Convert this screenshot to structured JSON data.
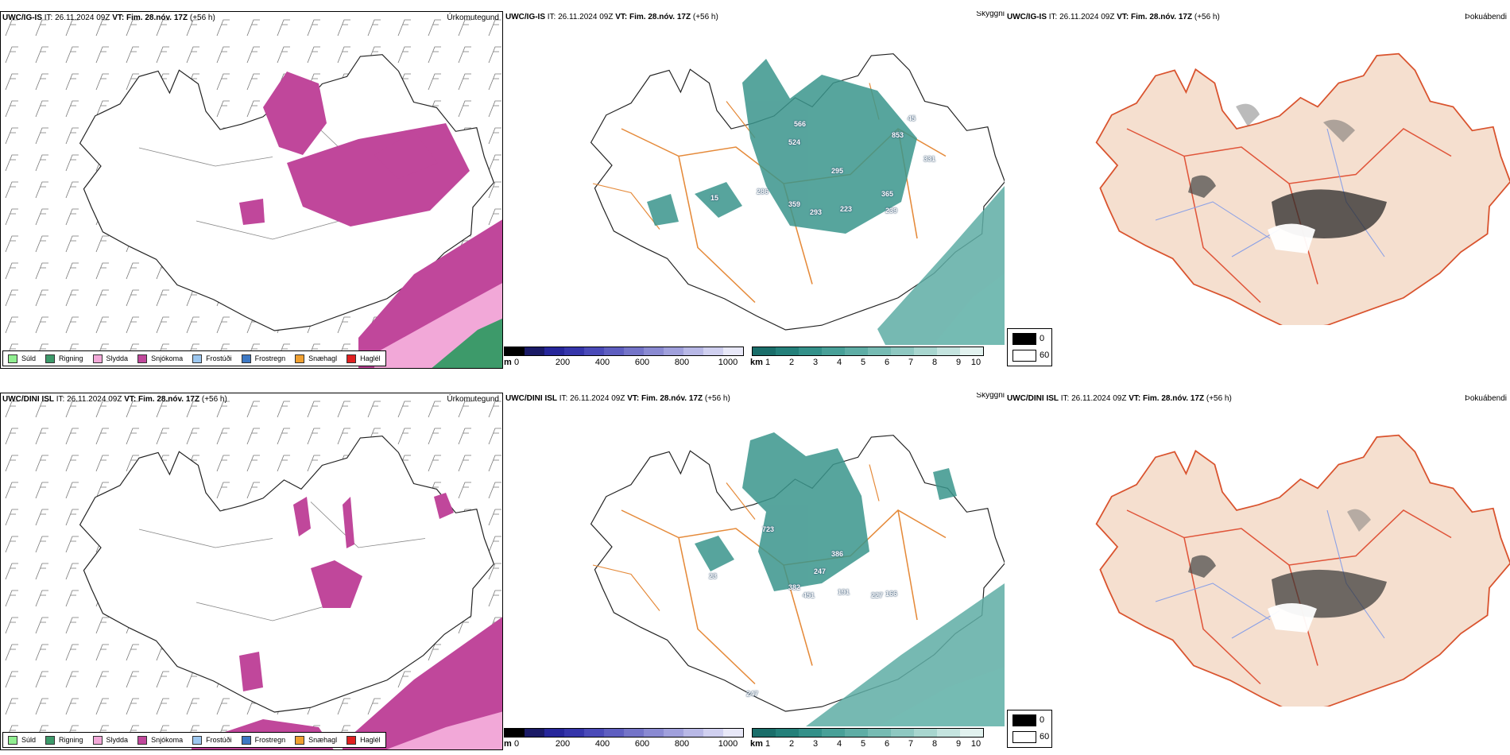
{
  "rows": [
    {
      "model": "UWC/IG-IS",
      "it_label": "IT:",
      "it_value": "26.11.2024 09Z",
      "vt_label": "VT:",
      "vt_value": "Fim. 28.nóv. 17Z",
      "lead": "(+56 h)",
      "peaks": [
        "566",
        "524",
        "45",
        "853",
        "331",
        "295",
        "365",
        "239",
        "223",
        "293",
        "359",
        "286",
        "15"
      ]
    },
    {
      "model": "UWC/DINI ISL",
      "it_label": "IT:",
      "it_value": "26.11.2024 09Z",
      "vt_label": "VT:",
      "vt_value": "Fim. 28.nóv. 17Z",
      "lead": "(+56 h)",
      "peaks": [
        "723",
        "386",
        "247",
        "382",
        "451",
        "191",
        "227",
        "166",
        "23",
        "247"
      ]
    }
  ],
  "panel_titles": {
    "precip": "Úrkomutegund",
    "ceiling": "Skyggni",
    "fog": "Þokuábendi"
  },
  "precip_legend": [
    {
      "label": "Súld",
      "color": "#90ee90"
    },
    {
      "label": "Rigning",
      "color": "#3d9a6a"
    },
    {
      "label": "Slydda",
      "color": "#f2a8d8"
    },
    {
      "label": "Snjókoma",
      "color": "#c0479b"
    },
    {
      "label": "Frostúði",
      "color": "#9cc7f0"
    },
    {
      "label": "Frostregn",
      "color": "#3d78c4"
    },
    {
      "label": "Snæhagl",
      "color": "#f0a030"
    },
    {
      "label": "Haglél",
      "color": "#e02020"
    }
  ],
  "height_bar": {
    "unit": "m",
    "labels": [
      "0",
      "200",
      "400",
      "600",
      "800",
      "1000"
    ],
    "colors": [
      "#000000",
      "#1a1a66",
      "#26269a",
      "#3535aa",
      "#4a4ab8",
      "#5e5ec0",
      "#7474c8",
      "#8a8ad2",
      "#a0a0dc",
      "#b8b8e6",
      "#d0d0f0",
      "#e8e8f8"
    ]
  },
  "visibility_bar": {
    "unit": "km",
    "labels": [
      "1",
      "2",
      "3",
      "4",
      "5",
      "6",
      "7",
      "8",
      "9",
      "10"
    ],
    "colors": [
      "#1a6e6a",
      "#24807a",
      "#339089",
      "#48a098",
      "#5eada5",
      "#76bbb3",
      "#8ec8c1",
      "#a8d6cf",
      "#c4e4df",
      "#e2f2ef"
    ]
  },
  "fog_legend": {
    "labels": [
      "0",
      "60"
    ],
    "colors": [
      "#000000",
      "#ffffff"
    ]
  }
}
